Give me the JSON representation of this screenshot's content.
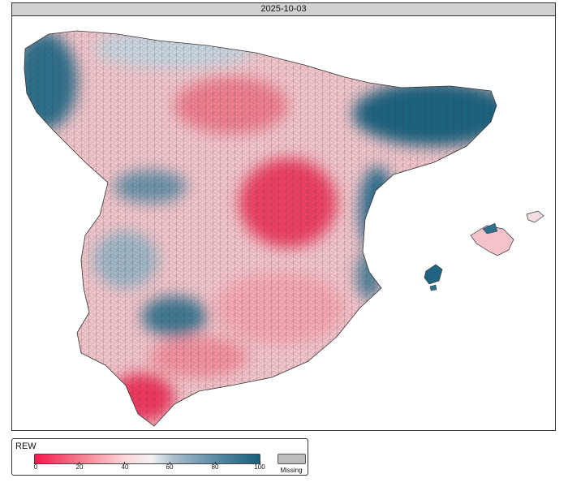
{
  "title": "2025-10-03",
  "legend": {
    "title": "REW",
    "ticks": [
      "0",
      "20",
      "40",
      "60",
      "80",
      "100"
    ],
    "tick_values": [
      0,
      20,
      40,
      60,
      80,
      100
    ],
    "range": [
      0,
      100
    ],
    "missing_label": "Missing",
    "colors": {
      "low": "#f5174a",
      "mid": "#f1f1f1",
      "high": "#1a5f7c",
      "missing": "#bdbdbd"
    }
  }
}
